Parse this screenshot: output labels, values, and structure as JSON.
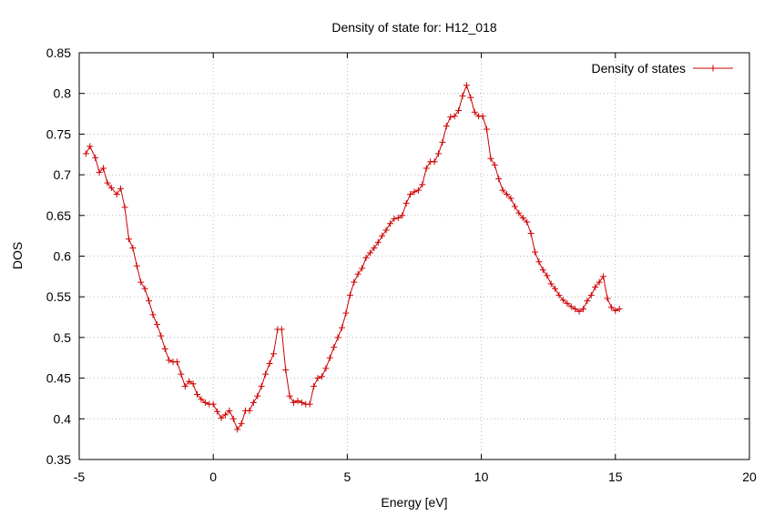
{
  "chart_data": {
    "type": "line",
    "title": "Density of state for: H12_018",
    "xlabel": "Energy [eV]",
    "ylabel": "DOS",
    "xlim": [
      -5,
      20
    ],
    "ylim": [
      0.35,
      0.85
    ],
    "xticks": [
      -5,
      0,
      5,
      10,
      15,
      20
    ],
    "yticks": [
      0.35,
      0.4,
      0.45,
      0.5,
      0.55,
      0.6,
      0.65,
      0.7,
      0.75,
      0.8,
      0.85
    ],
    "xtick_labels": [
      "-5",
      "0",
      "5",
      "10",
      "15",
      "20"
    ],
    "ytick_labels": [
      "0.35",
      "0.4",
      "0.45",
      "0.5",
      "0.55",
      "0.6",
      "0.65",
      "0.7",
      "0.75",
      "0.8",
      "0.85"
    ],
    "grid": true,
    "legend_position": "top-right",
    "marker": "plus",
    "series": [
      {
        "name": "Density of states",
        "color": "#cc0000",
        "x": [
          -4.75,
          -4.6,
          -4.4,
          -4.25,
          -4.1,
          -3.95,
          -3.8,
          -3.6,
          -3.45,
          -3.3,
          -3.15,
          -3.0,
          -2.85,
          -2.7,
          -2.55,
          -2.4,
          -2.25,
          -2.1,
          -1.95,
          -1.8,
          -1.65,
          -1.5,
          -1.35,
          -1.2,
          -1.05,
          -0.9,
          -0.75,
          -0.6,
          -0.45,
          -0.3,
          -0.15,
          0.0,
          0.15,
          0.3,
          0.45,
          0.6,
          0.75,
          0.9,
          1.05,
          1.2,
          1.35,
          1.5,
          1.65,
          1.8,
          1.95,
          2.1,
          2.25,
          2.4,
          2.55,
          2.7,
          2.85,
          3.0,
          3.15,
          3.3,
          3.45,
          3.6,
          3.75,
          3.9,
          4.05,
          4.2,
          4.35,
          4.5,
          4.65,
          4.8,
          4.95,
          5.1,
          5.25,
          5.4,
          5.55,
          5.7,
          5.85,
          6.0,
          6.15,
          6.3,
          6.45,
          6.6,
          6.75,
          6.9,
          7.05,
          7.2,
          7.35,
          7.5,
          7.65,
          7.8,
          7.95,
          8.1,
          8.25,
          8.4,
          8.55,
          8.7,
          8.85,
          9.0,
          9.15,
          9.3,
          9.45,
          9.6,
          9.75,
          9.9,
          10.05,
          10.2,
          10.35,
          10.5,
          10.65,
          10.8,
          10.95,
          11.1,
          11.25,
          11.4,
          11.55,
          11.7,
          11.85,
          12.0,
          12.15,
          12.3,
          12.45,
          12.6,
          12.75,
          12.9,
          13.05,
          13.2,
          13.35,
          13.5,
          13.65,
          13.8,
          13.95,
          14.1,
          14.25,
          14.4,
          14.55,
          14.7,
          14.85,
          15.0,
          15.15
        ],
        "y": [
          0.726,
          0.735,
          0.721,
          0.703,
          0.708,
          0.69,
          0.684,
          0.676,
          0.683,
          0.66,
          0.621,
          0.61,
          0.588,
          0.568,
          0.56,
          0.545,
          0.528,
          0.516,
          0.502,
          0.486,
          0.472,
          0.47,
          0.47,
          0.455,
          0.44,
          0.446,
          0.443,
          0.43,
          0.424,
          0.42,
          0.418,
          0.418,
          0.409,
          0.401,
          0.405,
          0.41,
          0.4,
          0.387,
          0.394,
          0.41,
          0.41,
          0.42,
          0.428,
          0.44,
          0.455,
          0.468,
          0.48,
          0.51,
          0.51,
          0.46,
          0.428,
          0.42,
          0.422,
          0.42,
          0.418,
          0.418,
          0.44,
          0.45,
          0.452,
          0.462,
          0.475,
          0.488,
          0.5,
          0.512,
          0.53,
          0.552,
          0.568,
          0.578,
          0.585,
          0.598,
          0.604,
          0.61,
          0.617,
          0.625,
          0.632,
          0.64,
          0.646,
          0.647,
          0.65,
          0.665,
          0.676,
          0.679,
          0.681,
          0.688,
          0.708,
          0.716,
          0.716,
          0.726,
          0.74,
          0.76,
          0.771,
          0.772,
          0.779,
          0.797,
          0.81,
          0.795,
          0.777,
          0.772,
          0.772,
          0.756,
          0.72,
          0.712,
          0.695,
          0.681,
          0.676,
          0.671,
          0.661,
          0.653,
          0.647,
          0.642,
          0.628,
          0.605,
          0.593,
          0.583,
          0.576,
          0.566,
          0.56,
          0.552,
          0.546,
          0.542,
          0.538,
          0.535,
          0.532,
          0.535,
          0.545,
          0.552,
          0.562,
          0.568,
          0.575,
          0.548,
          0.537,
          0.533,
          0.535
        ]
      }
    ]
  }
}
